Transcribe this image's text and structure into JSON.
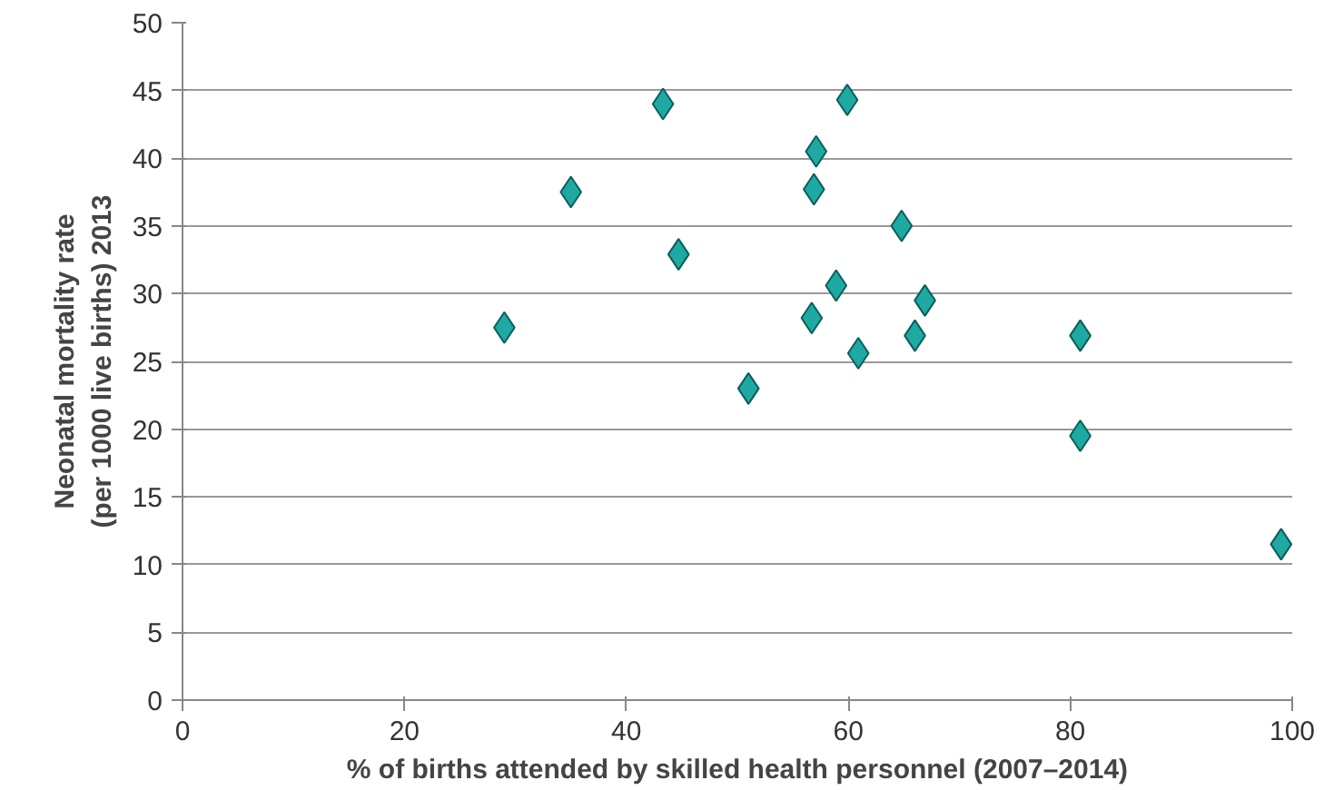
{
  "chart_data": {
    "type": "scatter",
    "xlabel": "% of births attended by skilled health personnel (2007–2014)",
    "ylabel": "Neonatal mortality rate\n(per 1000 live births) 2013",
    "x": [
      29,
      35,
      43.3,
      44.7,
      51,
      57.1,
      56.9,
      56.7,
      58.9,
      59.9,
      60.9,
      64.8,
      66,
      66.9,
      80.9,
      80.9,
      99
    ],
    "series": [
      {
        "color": "#1fa9a3",
        "values": [
          27.5,
          37.5,
          44,
          32.9,
          23,
          40.5,
          37.7,
          28.2,
          30.6,
          44.3,
          25.6,
          35,
          26.9,
          29.5,
          26.9,
          19.5,
          11.5
        ]
      }
    ],
    "xlim": [
      0,
      100
    ],
    "xticks": [
      0,
      20,
      40,
      60,
      80,
      100
    ],
    "ylim": [
      0,
      50
    ],
    "yticks": [
      0,
      5,
      10,
      15,
      20,
      25,
      30,
      35,
      40,
      45,
      50
    ],
    "grid": "y",
    "marker": "diamond"
  }
}
